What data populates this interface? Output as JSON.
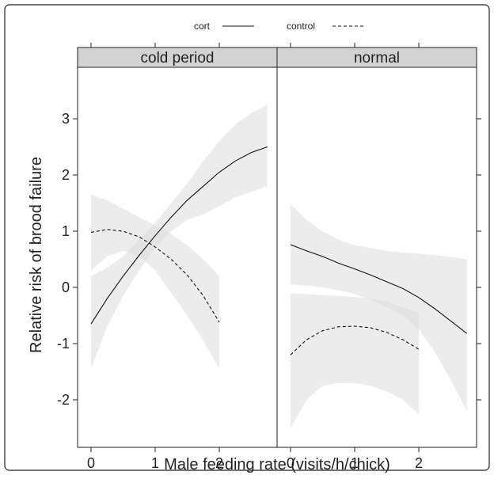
{
  "chart_data": {
    "type": "line",
    "xlabel": "Male feeding rate (visits/h/chick)",
    "ylabel": "Relative risk of brood failure",
    "xlim": [
      -0.15,
      2.9
    ],
    "ylim": [
      -2.5,
      4.0
    ],
    "x_ticks": [
      0,
      1,
      2
    ],
    "y_ticks": [
      -2,
      -1,
      0,
      1,
      2,
      3
    ],
    "grid": false,
    "legend_position": "top-center",
    "legend": [
      {
        "name": "cort",
        "style": "solid"
      },
      {
        "name": "control",
        "style": "dashed"
      }
    ],
    "colors": {
      "line": "#111111",
      "ribbon": "#dcdcdc",
      "strip": "#d3d3d3",
      "border": "#222222"
    },
    "panels": [
      {
        "title": "cold period",
        "series": [
          {
            "name": "cort",
            "style": "solid",
            "x": [
              0,
              0.25,
              0.5,
              0.75,
              1.0,
              1.25,
              1.5,
              1.75,
              2.0,
              2.25,
              2.5,
              2.75
            ],
            "y": [
              -0.65,
              -0.2,
              0.2,
              0.57,
              0.92,
              1.25,
              1.55,
              1.8,
              2.05,
              2.25,
              2.4,
              2.5
            ],
            "lower": [
              -1.45,
              -0.7,
              -0.15,
              0.3,
              0.7,
              1.0,
              1.2,
              1.3,
              1.45,
              1.6,
              1.7,
              1.8
            ],
            "upper": [
              0.2,
              0.35,
              0.55,
              0.85,
              1.15,
              1.5,
              1.85,
              2.25,
              2.6,
              2.9,
              3.1,
              3.25
            ]
          },
          {
            "name": "control",
            "style": "dashed",
            "x": [
              0,
              0.25,
              0.5,
              0.75,
              1.0,
              1.25,
              1.5,
              1.75,
              2.0
            ],
            "y": [
              0.98,
              1.03,
              1.0,
              0.9,
              0.72,
              0.5,
              0.22,
              -0.15,
              -0.62
            ],
            "lower": [
              0.3,
              0.55,
              0.65,
              0.55,
              0.3,
              -0.1,
              -0.5,
              -0.95,
              -1.45
            ],
            "upper": [
              1.65,
              1.55,
              1.4,
              1.25,
              1.1,
              0.95,
              0.75,
              0.5,
              0.2
            ]
          }
        ]
      },
      {
        "title": "normal",
        "series": [
          {
            "name": "cort",
            "style": "solid",
            "x": [
              0,
              0.25,
              0.5,
              0.75,
              1.0,
              1.25,
              1.5,
              1.75,
              2.0,
              2.25,
              2.5,
              2.75
            ],
            "y": [
              0.76,
              0.65,
              0.55,
              0.43,
              0.33,
              0.22,
              0.1,
              -0.02,
              -0.18,
              -0.38,
              -0.6,
              -0.82
            ],
            "lower": [
              0.05,
              0.03,
              0.0,
              -0.05,
              -0.12,
              -0.22,
              -0.35,
              -0.5,
              -0.75,
              -1.15,
              -1.65,
              -2.2
            ],
            "upper": [
              1.48,
              1.2,
              1.0,
              0.85,
              0.75,
              0.7,
              0.65,
              0.62,
              0.6,
              0.57,
              0.54,
              0.5
            ]
          },
          {
            "name": "control",
            "style": "dashed",
            "x": [
              0,
              0.25,
              0.5,
              0.75,
              1.0,
              1.25,
              1.5,
              1.75,
              2.0
            ],
            "y": [
              -1.2,
              -0.93,
              -0.77,
              -0.7,
              -0.69,
              -0.72,
              -0.8,
              -0.93,
              -1.1
            ],
            "lower": [
              -2.5,
              -2.0,
              -1.75,
              -1.7,
              -1.7,
              -1.75,
              -1.85,
              -2.0,
              -2.25
            ],
            "upper": [
              -0.1,
              -0.12,
              -0.14,
              -0.15,
              -0.17,
              -0.2,
              -0.25,
              -0.35,
              -0.45
            ]
          }
        ]
      }
    ]
  }
}
